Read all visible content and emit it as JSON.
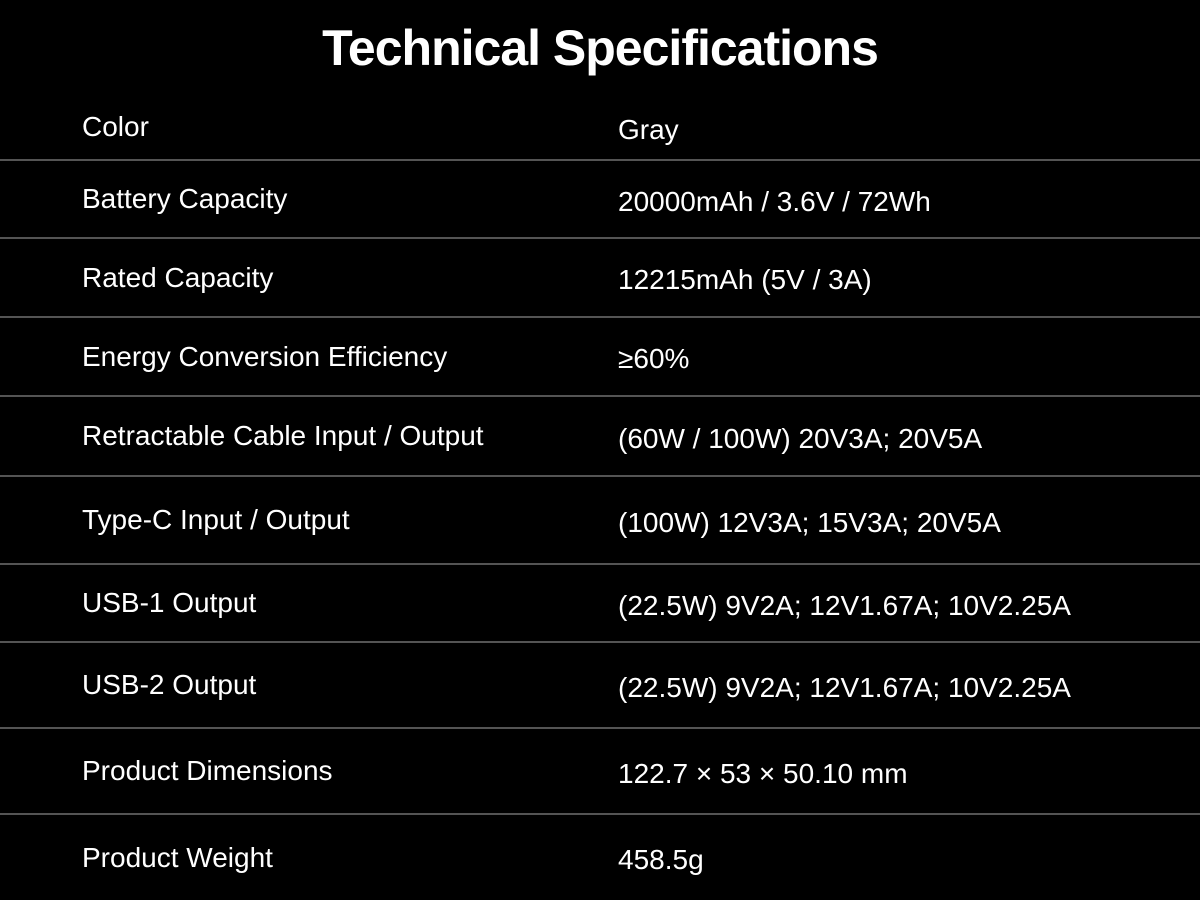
{
  "title": "Technical Specifications",
  "table": {
    "rows": [
      {
        "label": "Color",
        "value": "Gray"
      },
      {
        "label": "Battery Capacity",
        "value": "20000mAh / 3.6V / 72Wh"
      },
      {
        "label": "Rated Capacity",
        "value": "12215mAh (5V / 3A)"
      },
      {
        "label": "Energy Conversion Efficiency",
        "value": "≥60%"
      },
      {
        "label": "Retractable Cable Input / Output",
        "value": "(60W / 100W) 20V3A; 20V5A"
      },
      {
        "label": "Type-C Input / Output",
        "value": "(100W) 12V3A; 15V3A; 20V5A"
      },
      {
        "label": "USB-1 Output",
        "value": "(22.5W) 9V2A; 12V1.67A; 10V2.25A"
      },
      {
        "label": "USB-2 Output",
        "value": "(22.5W) 9V2A; 12V1.67A; 10V2.25A"
      },
      {
        "label": "Product Dimensions",
        "value": "122.7 × 53 × 50.10 mm"
      },
      {
        "label": "Product Weight",
        "value": "458.5g"
      }
    ]
  },
  "colors": {
    "background": "#000000",
    "text": "#ffffff",
    "divider": "#545454"
  }
}
